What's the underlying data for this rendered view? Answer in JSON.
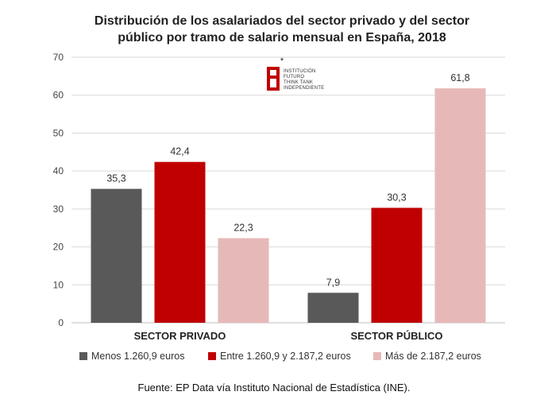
{
  "chart_data": {
    "type": "bar",
    "title_lines": [
      "Distribución de los asalariados del sector privado y del sector",
      "público por tramo de salario mensual en España, 2018"
    ],
    "categories": [
      "SECTOR PRIVADO",
      "SECTOR PÚBLICO"
    ],
    "series": [
      {
        "name": "Menos 1.260,9 euros",
        "values": [
          35.3,
          7.9
        ],
        "labels": [
          "35,3",
          "7,9"
        ],
        "color": "#595959"
      },
      {
        "name": "Entre 1.260,9  y 2.187,2 euros",
        "values": [
          42.4,
          30.3
        ],
        "labels": [
          "42,4",
          "30,3"
        ],
        "color": "#c00000"
      },
      {
        "name": "Más de 2.187,2 euros",
        "values": [
          22.3,
          61.8
        ],
        "labels": [
          "22,3",
          "61,8"
        ],
        "color": "#e6b9b8"
      }
    ],
    "ylim": [
      0,
      70
    ],
    "yticks": [
      0,
      10,
      20,
      30,
      40,
      50,
      60,
      70
    ],
    "grid": true,
    "legend_position": "bottom"
  },
  "source": "Fuente: EP Data vía Instituto Nacional de Estadística (INE).",
  "logo": {
    "asterisk": "*",
    "lines": [
      "INSTITUCIÓN",
      "FUTURO",
      "THINK TANK",
      "INDEPENDIENTE"
    ],
    "color": "#c00000"
  }
}
